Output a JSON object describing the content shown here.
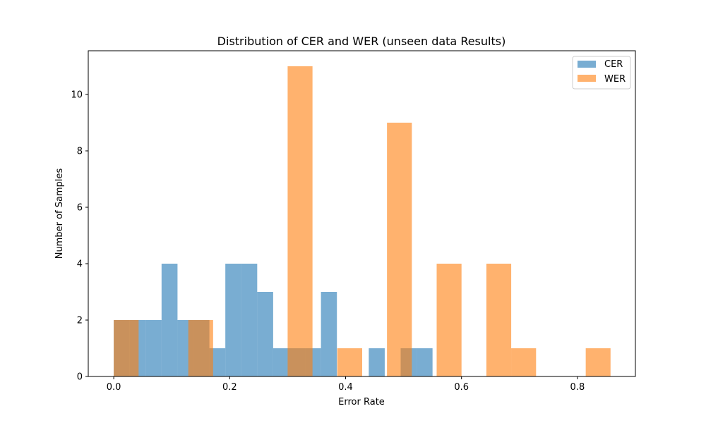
{
  "chart_data": {
    "type": "bar",
    "title": "Distribution of CER and WER (unseen data Results)",
    "xlabel": "Error Rate",
    "ylabel": "Number of Samples",
    "xlim": [
      -0.044,
      0.9
    ],
    "ylim": [
      0,
      11.55
    ],
    "xticks": [
      0.0,
      0.2,
      0.4,
      0.6,
      0.8
    ],
    "xtick_labels": [
      "0.0",
      "0.2",
      "0.4",
      "0.6",
      "0.8"
    ],
    "yticks": [
      0,
      2,
      4,
      6,
      8,
      10
    ],
    "ytick_labels": [
      "0",
      "2",
      "4",
      "6",
      "8",
      "10"
    ],
    "legend_position": "top-right",
    "series": [
      {
        "name": "CER",
        "color": "#1f77b4",
        "opacity": 0.6,
        "bins": [
          {
            "x0": 0.0,
            "x1": 0.0275,
            "count": 2
          },
          {
            "x0": 0.0275,
            "x1": 0.055,
            "count": 2
          },
          {
            "x0": 0.055,
            "x1": 0.0825,
            "count": 2
          },
          {
            "x0": 0.0825,
            "x1": 0.11,
            "count": 4
          },
          {
            "x0": 0.11,
            "x1": 0.1375,
            "count": 2
          },
          {
            "x0": 0.1375,
            "x1": 0.165,
            "count": 2
          },
          {
            "x0": 0.165,
            "x1": 0.1925,
            "count": 1
          },
          {
            "x0": 0.1925,
            "x1": 0.22,
            "count": 4
          },
          {
            "x0": 0.22,
            "x1": 0.2475,
            "count": 4
          },
          {
            "x0": 0.2475,
            "x1": 0.275,
            "count": 3
          },
          {
            "x0": 0.275,
            "x1": 0.3025,
            "count": 1
          },
          {
            "x0": 0.3025,
            "x1": 0.33,
            "count": 1
          },
          {
            "x0": 0.33,
            "x1": 0.3575,
            "count": 1
          },
          {
            "x0": 0.3575,
            "x1": 0.385,
            "count": 3
          },
          {
            "x0": 0.44,
            "x1": 0.4675,
            "count": 1
          },
          {
            "x0": 0.495,
            "x1": 0.5225,
            "count": 1
          },
          {
            "x0": 0.5225,
            "x1": 0.55,
            "count": 1
          }
        ]
      },
      {
        "name": "WER",
        "color": "#ff7f0e",
        "opacity": 0.6,
        "bins": [
          {
            "x0": 0.0,
            "x1": 0.0429,
            "count": 2
          },
          {
            "x0": 0.1286,
            "x1": 0.1714,
            "count": 2
          },
          {
            "x0": 0.3,
            "x1": 0.3429,
            "count": 11
          },
          {
            "x0": 0.3857,
            "x1": 0.4286,
            "count": 1
          },
          {
            "x0": 0.4714,
            "x1": 0.5143,
            "count": 9
          },
          {
            "x0": 0.5571,
            "x1": 0.6,
            "count": 4
          },
          {
            "x0": 0.6429,
            "x1": 0.6857,
            "count": 4
          },
          {
            "x0": 0.6857,
            "x1": 0.7286,
            "count": 1
          },
          {
            "x0": 0.8143,
            "x1": 0.8571,
            "count": 1
          }
        ]
      }
    ]
  }
}
